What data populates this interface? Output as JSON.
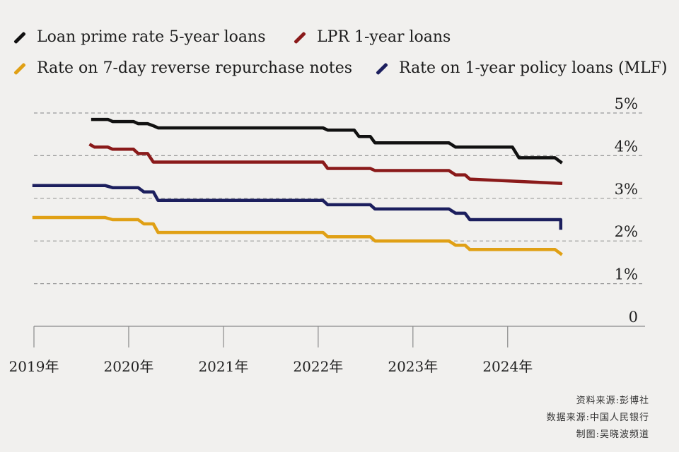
{
  "legend": [
    {
      "label": "Loan prime rate 5-year loans",
      "color": "#111111"
    },
    {
      "label": "LPR 1-year loans",
      "color": "#8a1a1a"
    },
    {
      "label": "Rate on 7-day reverse repurchase notes",
      "color": "#e0a015"
    },
    {
      "label": "Rate on 1-year policy loans (MLF)",
      "color": "#1c1f5e"
    }
  ],
  "sources": [
    "资料来源:彭博社",
    "数据来源:中国人民银行",
    "制图:吴晓波频道"
  ],
  "chart_data": {
    "type": "line",
    "title": "",
    "xlabel": "",
    "ylabel": "",
    "ylim": [
      0,
      5
    ],
    "yticks": [
      0,
      1,
      2,
      3,
      4,
      5
    ],
    "ytick_labels": [
      "0",
      "1%",
      "2%",
      "3%",
      "4%",
      "5%"
    ],
    "xlim": [
      2019.0,
      2025.45
    ],
    "xtick_values": [
      2019.0,
      2020.0,
      2021.0,
      2022.0,
      2023.0,
      2024.0
    ],
    "xtick_labels": [
      "2019年",
      "2020年",
      "2021年",
      "2022年",
      "2023年",
      "2024年"
    ],
    "grid": "horizontal dashed",
    "series": [
      {
        "name": "Loan prime rate 5-year loans",
        "color": "#111111",
        "x": [
          2019.62,
          2019.78,
          2019.83,
          2019.86,
          2020.05,
          2020.1,
          2020.2,
          2020.26,
          2020.31,
          2022.05,
          2022.1,
          2022.38,
          2022.43,
          2022.55,
          2022.6,
          2023.38,
          2023.45,
          2024.05,
          2024.12,
          2024.5,
          2024.56
        ],
        "y": [
          4.85,
          4.85,
          4.8,
          4.8,
          4.8,
          4.75,
          4.75,
          4.7,
          4.65,
          4.65,
          4.6,
          4.6,
          4.45,
          4.45,
          4.3,
          4.3,
          4.2,
          4.2,
          3.95,
          3.95,
          3.85
        ]
      },
      {
        "name": "LPR 1-year loans",
        "color": "#8a1a1a",
        "x": [
          2019.6,
          2019.64,
          2019.68,
          2019.78,
          2019.83,
          2020.05,
          2020.1,
          2020.2,
          2020.26,
          2020.31,
          2022.05,
          2022.1,
          2022.55,
          2022.6,
          2023.38,
          2023.45,
          2023.55,
          2023.6,
          2024.56
        ],
        "y": [
          4.25,
          4.2,
          4.2,
          4.2,
          4.15,
          4.15,
          4.05,
          4.05,
          3.85,
          3.85,
          3.85,
          3.7,
          3.7,
          3.65,
          3.65,
          3.55,
          3.55,
          3.45,
          3.35
        ]
      },
      {
        "name": "Rate on 1-year policy loans (MLF)",
        "color": "#1c1f5e",
        "x": [
          2019.0,
          2019.75,
          2019.83,
          2020.1,
          2020.16,
          2020.26,
          2020.31,
          2022.05,
          2022.1,
          2022.55,
          2022.6,
          2023.38,
          2023.45,
          2023.55,
          2023.6,
          2024.56,
          2024.56
        ],
        "y": [
          3.3,
          3.3,
          3.25,
          3.25,
          3.15,
          3.15,
          2.95,
          2.95,
          2.85,
          2.85,
          2.75,
          2.75,
          2.65,
          2.65,
          2.5,
          2.5,
          2.3
        ]
      },
      {
        "name": "Rate on 7-day reverse repurchase notes",
        "color": "#e0a015",
        "x": [
          2019.0,
          2019.75,
          2019.83,
          2020.1,
          2020.16,
          2020.26,
          2020.31,
          2022.05,
          2022.1,
          2022.55,
          2022.6,
          2023.38,
          2023.45,
          2023.55,
          2023.6,
          2024.5,
          2024.56
        ],
        "y": [
          2.55,
          2.55,
          2.5,
          2.5,
          2.4,
          2.4,
          2.2,
          2.2,
          2.1,
          2.1,
          2.0,
          2.0,
          1.9,
          1.9,
          1.8,
          1.8,
          1.7
        ]
      }
    ]
  }
}
